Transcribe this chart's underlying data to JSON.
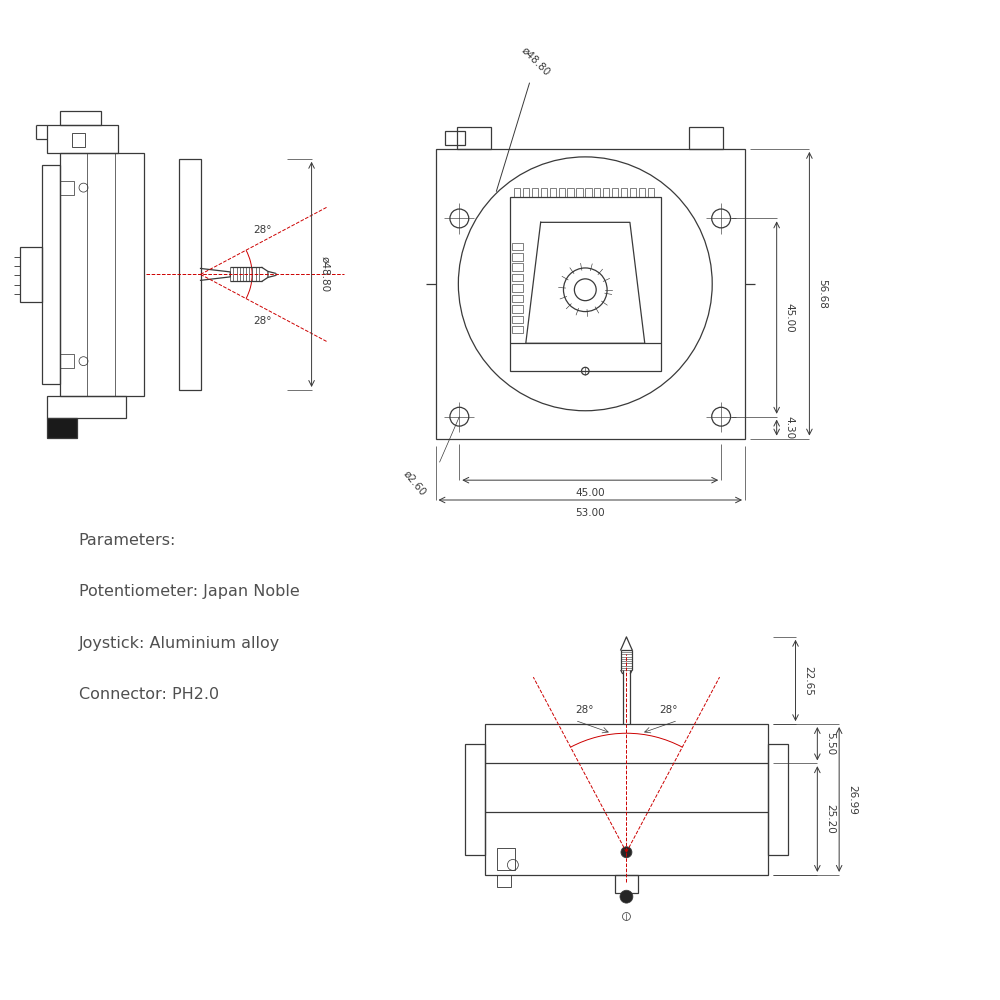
{
  "bg_color": "#ffffff",
  "line_color": "#3a3a3a",
  "red_color": "#cc0000",
  "dim_color": "#3a3a3a",
  "text_color": "#505050",
  "params_title": "Parameters:",
  "param1": "Potentiometer: Japan Noble",
  "param2": "Joystick: Aluminium alloy",
  "param3": "Connector: PH2.0",
  "dim_48_80_side": "ø48.80",
  "dim_48_80_front": "ø48.80",
  "dim_56_68": "56.68",
  "dim_45_00_v": "45.00",
  "dim_4_30": "4.30",
  "dim_45_00_h": "45.00",
  "dim_53_00": "53.00",
  "dim_2_60": "ø2.60",
  "dim_28_top": "28°",
  "dim_28_bot": "28°",
  "dim_22_65": "22.65",
  "dim_25_20": "25.20",
  "dim_5_50": "5.50",
  "dim_26_99": "26.99",
  "dim_28_left": "28°",
  "dim_28_right": "28°"
}
